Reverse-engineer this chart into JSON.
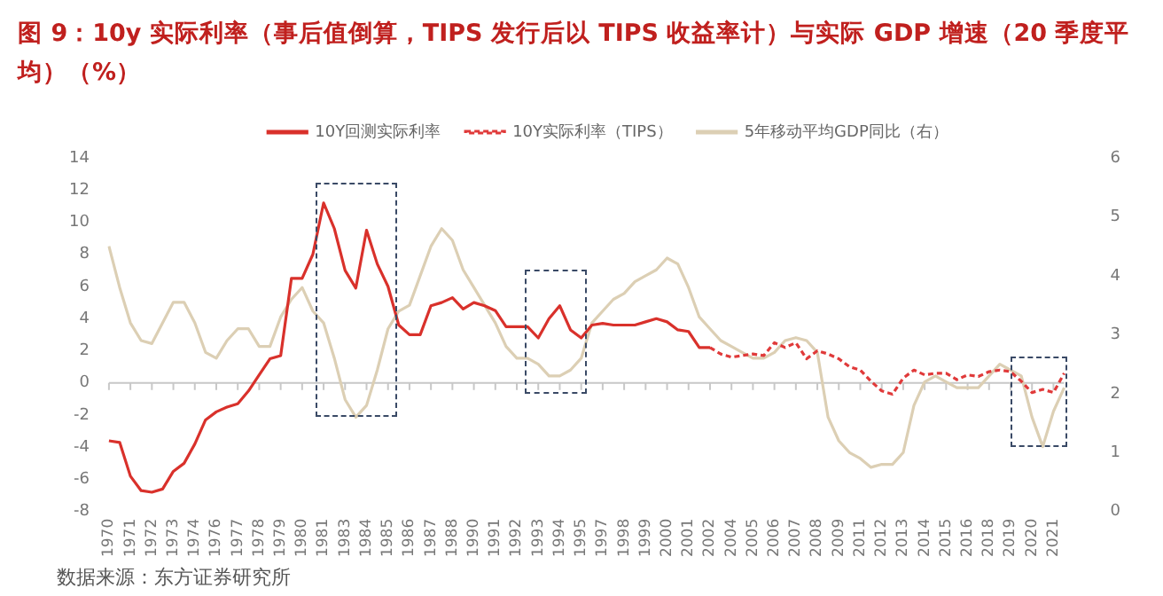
{
  "chart_data": {
    "type": "line",
    "title": "图 9：10y 实际利率（事后值倒算，TIPS 发行后以 TIPS 收益率计）与实际 GDP 增速（20 季度平均）（%）",
    "categories": [
      "1970",
      null,
      "1971",
      null,
      "1972",
      null,
      "1973",
      null,
      "1974",
      null,
      "1976",
      null,
      "1977",
      null,
      "1978",
      null,
      "1979",
      null,
      "1980",
      null,
      "1981",
      null,
      "1983",
      null,
      "1984",
      null,
      "1985",
      null,
      "1986",
      null,
      "1987",
      null,
      "1988",
      null,
      "1990",
      null,
      "1991",
      null,
      "1992",
      null,
      "1993",
      null,
      "1994",
      null,
      "1995",
      null,
      "1997",
      null,
      "1998",
      null,
      "1999",
      null,
      "2000",
      null,
      "2001",
      null,
      "2002",
      null,
      "2004",
      null,
      "2005",
      null,
      "2006",
      null,
      "2007",
      null,
      "2008",
      null,
      "2009",
      null,
      "2011",
      null,
      "2012",
      null,
      "2013",
      null,
      "2014",
      null,
      "2015",
      null,
      "2016",
      null,
      "2018",
      null,
      "2019",
      null,
      "2020",
      null,
      "2021",
      null
    ],
    "series": [
      {
        "name": "10Y回测实际利率",
        "color": "#d9312b",
        "type": "line",
        "line_style": "solid",
        "values": [
          -3.6,
          -3.7,
          -5.8,
          -6.7,
          -6.8,
          -6.6,
          -5.5,
          -5.0,
          -3.8,
          -2.3,
          -1.8,
          -1.5,
          -1.3,
          -0.5,
          0.5,
          1.5,
          1.7,
          6.5,
          6.5,
          8.0,
          11.2,
          9.6,
          7.0,
          5.9,
          9.5,
          7.4,
          6.0,
          3.6,
          3.0,
          3.0,
          4.8,
          5.0,
          5.3,
          4.6,
          5.0,
          4.8,
          4.5,
          3.5,
          3.5,
          3.5,
          2.8,
          4.0,
          4.8,
          3.3,
          2.8,
          3.6,
          3.7,
          3.6,
          3.6,
          3.6,
          3.8,
          4.0,
          3.8,
          3.3,
          3.2,
          2.2,
          2.2,
          null,
          null,
          null,
          null,
          null,
          null,
          null,
          null,
          null,
          null,
          null,
          null,
          null,
          null,
          null,
          null,
          null,
          null,
          null,
          null,
          null,
          null,
          null,
          null,
          null,
          null,
          null,
          null,
          null,
          null,
          null,
          null,
          null
        ]
      },
      {
        "name": "10Y实际利率（TIPS）",
        "color": "#e03a3a",
        "type": "line",
        "line_style": "dashed",
        "values": [
          null,
          null,
          null,
          null,
          null,
          null,
          null,
          null,
          null,
          null,
          null,
          null,
          null,
          null,
          null,
          null,
          null,
          null,
          null,
          null,
          null,
          null,
          null,
          null,
          null,
          null,
          null,
          null,
          null,
          null,
          null,
          null,
          null,
          null,
          null,
          null,
          null,
          null,
          null,
          null,
          null,
          null,
          null,
          null,
          null,
          null,
          null,
          null,
          null,
          null,
          null,
          null,
          null,
          null,
          null,
          null,
          2.2,
          1.8,
          1.6,
          1.7,
          1.8,
          1.7,
          2.5,
          2.2,
          2.5,
          1.5,
          2.0,
          1.8,
          1.5,
          1.0,
          0.8,
          0.1,
          -0.5,
          -0.7,
          0.3,
          0.8,
          0.5,
          0.6,
          0.6,
          0.2,
          0.5,
          0.4,
          0.7,
          0.8,
          0.7,
          0.1,
          -0.6,
          -0.4,
          -0.6,
          0.6
        ]
      },
      {
        "name": "5年移动平均GDP同比（右）",
        "color": "#dccfb4",
        "type": "line",
        "line_style": "solid",
        "axis": "y2",
        "values": [
          4.5,
          3.8,
          3.2,
          2.9,
          2.85,
          3.2,
          3.55,
          3.55,
          3.2,
          2.7,
          2.6,
          2.9,
          3.1,
          3.1,
          2.8,
          2.8,
          3.3,
          3.6,
          3.8,
          3.4,
          3.2,
          2.6,
          1.9,
          1.6,
          1.8,
          2.4,
          3.1,
          3.4,
          3.5,
          4.0,
          4.5,
          4.8,
          4.6,
          4.1,
          3.8,
          3.5,
          3.2,
          2.8,
          2.6,
          2.6,
          2.5,
          2.3,
          2.3,
          2.4,
          2.6,
          3.2,
          3.4,
          3.6,
          3.7,
          3.9,
          4.0,
          4.1,
          4.3,
          4.2,
          3.8,
          3.3,
          3.1,
          2.9,
          2.8,
          2.7,
          2.6,
          2.6,
          2.7,
          2.9,
          2.95,
          2.9,
          2.7,
          1.6,
          1.2,
          1.0,
          0.9,
          0.75,
          0.8,
          0.8,
          1.0,
          1.8,
          2.2,
          2.3,
          2.2,
          2.1,
          2.1,
          2.1,
          2.3,
          2.5,
          2.4,
          2.3,
          1.6,
          1.1,
          1.7,
          2.1
        ]
      }
    ],
    "ylim": [
      -8,
      14
    ],
    "yticks": [
      -8,
      -6,
      -4,
      -2,
      0,
      2,
      4,
      6,
      8,
      10,
      12,
      14
    ],
    "y2lim": [
      0,
      6
    ],
    "y2ticks": [
      0,
      1,
      2,
      3,
      4,
      5,
      6
    ],
    "ref_lines": [
      {
        "axis": "y",
        "value": 0,
        "color": "#c8c8c8"
      }
    ],
    "grid": false,
    "legend": "top",
    "marker": "none",
    "annotations": [
      "数据来源：东方证券研究所"
    ]
  }
}
